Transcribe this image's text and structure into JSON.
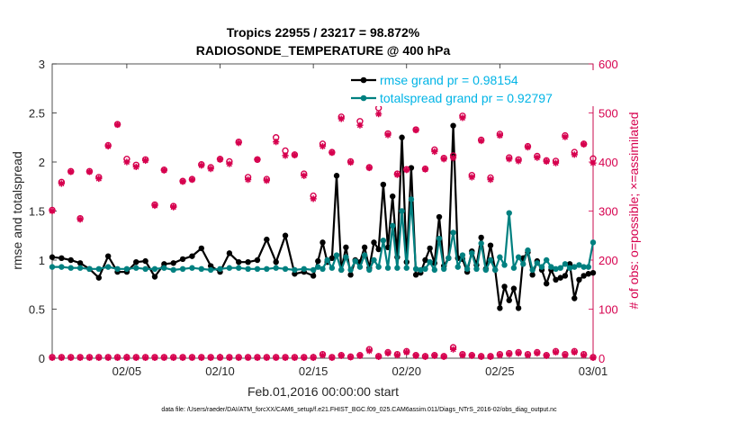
{
  "chart_data": {
    "type": "line",
    "title": [
      "Tropics 22955 / 23217 = 98.872%",
      "RADIOSONDE_TEMPERATURE @ 400 hPa"
    ],
    "xlabel": "Feb.01,2016 00:00:00 start",
    "ylabel_left": "rmse and totalspread",
    "ylabel_right": "# of obs: o=possible; ×=assimilated",
    "footnote": "data file: /Users/raeder/DAI/ATM_forcXX/CAM6_setup/f.e21.FHIST_BGC.f09_025.CAM6assim.011/Diags_NTrS_2016-02/obs_diag_output.nc",
    "xlim": [
      1,
      30
    ],
    "ylim_left": [
      0,
      3
    ],
    "ylim_right": [
      0,
      600
    ],
    "x_ticks": [
      5,
      10,
      15,
      20,
      25,
      30
    ],
    "x_tick_labels": [
      "02/05",
      "02/10",
      "02/15",
      "02/20",
      "02/25",
      "03/01"
    ],
    "y_ticks_left": [
      0,
      0.5,
      1,
      1.5,
      2,
      2.5,
      3
    ],
    "y_tick_labels_left": [
      "0",
      "0.5",
      "1",
      "1.5",
      "2",
      "2.5",
      "3"
    ],
    "y_ticks_right": [
      0,
      100,
      200,
      300,
      400,
      500,
      600
    ],
    "y_tick_labels_right": [
      "0",
      "100",
      "200",
      "300",
      "400",
      "500",
      "600"
    ],
    "legend": {
      "position": "top-right",
      "entries": [
        "rmse grand pr = 0.98154",
        "totalspread grand pr = 0.92797"
      ]
    },
    "series": [
      {
        "name": "rmse",
        "color": "#000000",
        "axis": "left",
        "x": [
          1.0,
          1.5,
          2.0,
          2.5,
          3.0,
          3.5,
          4.0,
          4.5,
          5.0,
          5.5,
          6.0,
          6.5,
          7.0,
          7.5,
          8.0,
          8.5,
          9.0,
          9.5,
          10.0,
          10.5,
          11.0,
          11.5,
          12.0,
          12.5,
          13.0,
          13.5,
          14.0,
          14.5,
          15.0,
          15.25,
          15.5,
          15.75,
          16.0,
          16.25,
          16.5,
          16.75,
          17.0,
          17.25,
          17.5,
          17.75,
          18.0,
          18.25,
          18.5,
          18.75,
          19.0,
          19.25,
          19.5,
          19.75,
          20.0,
          20.25,
          20.5,
          20.75,
          21.0,
          21.25,
          21.5,
          21.75,
          22.0,
          22.25,
          22.5,
          22.75,
          23.0,
          23.25,
          23.5,
          23.75,
          24.0,
          24.25,
          24.5,
          24.75,
          25.0,
          25.25,
          25.5,
          25.75,
          26.0,
          26.25,
          26.5,
          26.75,
          27.0,
          27.25,
          27.5,
          27.75,
          28.0,
          28.25,
          28.5,
          28.75,
          29.0,
          29.25,
          29.5,
          29.75,
          30.0
        ],
        "y": [
          1.03,
          1.02,
          1.0,
          0.97,
          0.91,
          0.82,
          1.04,
          0.88,
          0.88,
          0.98,
          0.99,
          0.83,
          0.96,
          0.97,
          1.01,
          1.04,
          1.12,
          0.94,
          0.88,
          1.07,
          0.98,
          0.98,
          1.0,
          1.21,
          0.98,
          1.25,
          0.86,
          0.88,
          0.84,
          0.99,
          1.18,
          0.98,
          1.02,
          1.86,
          0.9,
          1.13,
          0.85,
          1.0,
          0.98,
          1.13,
          0.92,
          1.18,
          1.11,
          1.77,
          1.13,
          1.65,
          1.03,
          2.25,
          0.98,
          1.94,
          0.85,
          0.87,
          1.0,
          1.12,
          0.97,
          1.44,
          0.94,
          1.02,
          2.37,
          1.02,
          1.01,
          0.88,
          1.09,
          0.95,
          1.23,
          0.91,
          1.15,
          0.9,
          0.51,
          0.73,
          0.59,
          0.71,
          0.51,
          1.02,
          1.08,
          0.85,
          0.99,
          0.9,
          0.76,
          0.9,
          0.8,
          0.82,
          0.84,
          0.96,
          0.61,
          0.8,
          0.84,
          0.86,
          0.87
        ]
      },
      {
        "name": "totalspread",
        "color": "#008080",
        "axis": "left",
        "x": [
          1.0,
          1.5,
          2.0,
          2.5,
          3.0,
          3.5,
          4.0,
          4.5,
          5.0,
          5.5,
          6.0,
          6.5,
          7.0,
          7.5,
          8.0,
          8.5,
          9.0,
          9.5,
          10.0,
          10.5,
          11.0,
          11.5,
          12.0,
          12.5,
          13.0,
          13.5,
          14.0,
          14.5,
          15.0,
          15.25,
          15.5,
          15.75,
          16.0,
          16.25,
          16.5,
          16.75,
          17.0,
          17.25,
          17.5,
          17.75,
          18.0,
          18.25,
          18.5,
          18.75,
          19.0,
          19.25,
          19.5,
          19.75,
          20.0,
          20.25,
          20.5,
          20.75,
          21.0,
          21.25,
          21.5,
          21.75,
          22.0,
          22.25,
          22.5,
          22.75,
          23.0,
          23.25,
          23.5,
          23.75,
          24.0,
          24.25,
          24.5,
          24.75,
          25.0,
          25.25,
          25.5,
          25.75,
          26.0,
          26.25,
          26.5,
          26.75,
          27.0,
          27.25,
          27.5,
          27.75,
          28.0,
          28.25,
          28.5,
          28.75,
          29.0,
          29.25,
          29.5,
          29.75,
          30.0
        ],
        "y": [
          0.93,
          0.93,
          0.92,
          0.92,
          0.91,
          0.91,
          0.93,
          0.91,
          0.91,
          0.92,
          0.91,
          0.91,
          0.92,
          0.9,
          0.91,
          0.92,
          0.91,
          0.9,
          0.91,
          0.92,
          0.92,
          0.91,
          0.91,
          0.91,
          0.92,
          0.91,
          0.9,
          0.91,
          0.9,
          0.93,
          0.91,
          1.0,
          0.92,
          1.05,
          0.9,
          1.03,
          0.9,
          0.99,
          0.93,
          1.05,
          0.9,
          1.0,
          0.93,
          1.2,
          0.92,
          1.35,
          0.92,
          1.5,
          0.92,
          1.62,
          0.91,
          0.9,
          0.91,
          0.98,
          0.9,
          1.22,
          0.91,
          1.02,
          1.28,
          0.93,
          1.05,
          0.91,
          1.07,
          0.91,
          1.17,
          0.9,
          1.0,
          0.9,
          1.03,
          0.95,
          1.48,
          0.92,
          1.03,
          0.96,
          1.1,
          0.9,
          0.97,
          0.93,
          1.0,
          0.93,
          0.91,
          0.92,
          0.96,
          0.92,
          0.93,
          0.95,
          0.93,
          0.93,
          1.18
        ]
      },
      {
        "name": "possible",
        "color": "#d6004e",
        "axis": "right",
        "marker": "circle",
        "x": [
          1.0,
          1.5,
          2.0,
          2.5,
          3.0,
          3.5,
          4.0,
          4.5,
          5.0,
          5.5,
          6.0,
          6.5,
          7.0,
          7.5,
          8.0,
          8.5,
          9.0,
          9.5,
          10.0,
          10.5,
          11.0,
          11.5,
          12.0,
          12.5,
          13.0,
          13.5,
          14.0,
          14.5,
          15.0,
          15.5,
          16.0,
          16.5,
          17.0,
          17.5,
          18.0,
          18.5,
          19.0,
          19.5,
          20.0,
          20.5,
          21.0,
          21.5,
          22.0,
          22.5,
          23.0,
          23.5,
          24.0,
          24.5,
          25.0,
          25.5,
          26.0,
          26.5,
          27.0,
          27.5,
          28.0,
          28.5,
          29.0,
          29.5,
          30.0
        ],
        "y": [
          302,
          359,
          381,
          285,
          381,
          369,
          434,
          477,
          406,
          394,
          405,
          313,
          384,
          310,
          361,
          365,
          395,
          389,
          406,
          401,
          441,
          369,
          405,
          365,
          450,
          423,
          415,
          376,
          331,
          437,
          420,
          492,
          401,
          483,
          389,
          510,
          458,
          376,
          385,
          466,
          386,
          425,
          408,
          413,
          494,
          373,
          445,
          368,
          457,
          409,
          405,
          432,
          412,
          403,
          402,
          454,
          420,
          437,
          407
        ]
      },
      {
        "name": "assimilated",
        "color": "#d6004e",
        "axis": "right",
        "marker": "star",
        "x": [
          1.0,
          1.5,
          2.0,
          2.5,
          3.0,
          3.5,
          4.0,
          4.5,
          5.0,
          5.5,
          6.0,
          6.5,
          7.0,
          7.5,
          8.0,
          8.5,
          9.0,
          9.5,
          10.0,
          10.5,
          11.0,
          11.5,
          12.0,
          12.5,
          13.0,
          13.5,
          14.0,
          14.5,
          15.0,
          15.5,
          16.0,
          16.5,
          17.0,
          17.5,
          18.0,
          18.5,
          19.0,
          19.5,
          20.0,
          20.5,
          21.0,
          21.5,
          22.0,
          22.5,
          23.0,
          23.5,
          24.0,
          24.5,
          25.0,
          25.5,
          26.0,
          26.5,
          27.0,
          27.5,
          28.0,
          28.5,
          29.0,
          29.5,
          30.0
        ],
        "y": [
          300,
          356,
          380,
          283,
          380,
          366,
          432,
          476,
          400,
          390,
          403,
          311,
          383,
          308,
          360,
          364,
          393,
          386,
          405,
          396,
          439,
          364,
          405,
          362,
          441,
          413,
          414,
          372,
          325,
          432,
          419,
          488,
          399,
          475,
          388,
          498,
          455,
          374,
          384,
          465,
          385,
          421,
          406,
          408,
          490,
          369,
          443,
          364,
          454,
          406,
          402,
          430,
          409,
          401,
          398,
          451,
          415,
          436,
          398
        ]
      },
      {
        "name": "possible_low",
        "color": "#d6004e",
        "axis": "right",
        "marker": "circle",
        "x": [
          1.0,
          1.5,
          2.0,
          2.5,
          3.0,
          3.5,
          4.0,
          4.5,
          5.0,
          5.5,
          6.0,
          6.5,
          7.0,
          7.5,
          8.0,
          8.5,
          9.0,
          9.5,
          10.0,
          10.5,
          11.0,
          11.5,
          12.0,
          12.5,
          13.0,
          13.5,
          14.0,
          14.5,
          15.0,
          15.5,
          16.0,
          16.5,
          17.0,
          17.5,
          18.0,
          18.5,
          19.0,
          19.5,
          20.0,
          20.5,
          21.0,
          21.5,
          22.0,
          22.5,
          23.0,
          23.5,
          24.0,
          24.5,
          25.0,
          25.5,
          26.0,
          26.5,
          27.0,
          27.5,
          28.0,
          28.5,
          29.0,
          29.5,
          30.0
        ],
        "y": [
          2,
          2,
          2,
          2,
          2,
          2,
          2,
          2,
          2,
          2,
          2,
          2,
          2,
          2,
          2,
          2,
          2,
          2,
          2,
          2,
          2,
          2,
          2,
          2,
          2,
          2,
          2,
          2,
          2,
          8,
          2,
          6,
          3,
          6,
          18,
          4,
          12,
          8,
          14,
          6,
          4,
          6,
          4,
          22,
          8,
          6,
          4,
          4,
          8,
          10,
          12,
          8,
          12,
          6,
          14,
          8,
          14,
          8,
          2
        ]
      },
      {
        "name": "assimilated_low",
        "color": "#d6004e",
        "axis": "right",
        "marker": "star",
        "x": [
          1.0,
          1.5,
          2.0,
          2.5,
          3.0,
          3.5,
          4.0,
          4.5,
          5.0,
          5.5,
          6.0,
          6.5,
          7.0,
          7.5,
          8.0,
          8.5,
          9.0,
          9.5,
          10.0,
          10.5,
          11.0,
          11.5,
          12.0,
          12.5,
          13.0,
          13.5,
          14.0,
          14.5,
          15.0,
          15.5,
          16.0,
          16.5,
          17.0,
          17.5,
          18.0,
          18.5,
          19.0,
          19.5,
          20.0,
          20.5,
          21.0,
          21.5,
          22.0,
          22.5,
          23.0,
          23.5,
          24.0,
          24.5,
          25.0,
          25.5,
          26.0,
          26.5,
          27.0,
          27.5,
          28.0,
          28.5,
          29.0,
          29.5,
          30.0
        ],
        "y": [
          1,
          1,
          1,
          1,
          1,
          1,
          1,
          1,
          1,
          1,
          1,
          1,
          1,
          1,
          1,
          1,
          1,
          1,
          1,
          1,
          1,
          1,
          1,
          1,
          1,
          1,
          1,
          1,
          1,
          6,
          1,
          5,
          2,
          5,
          15,
          3,
          10,
          6,
          12,
          5,
          3,
          5,
          3,
          18,
          6,
          5,
          3,
          3,
          6,
          8,
          10,
          6,
          10,
          5,
          12,
          6,
          12,
          6,
          1
        ]
      }
    ]
  }
}
